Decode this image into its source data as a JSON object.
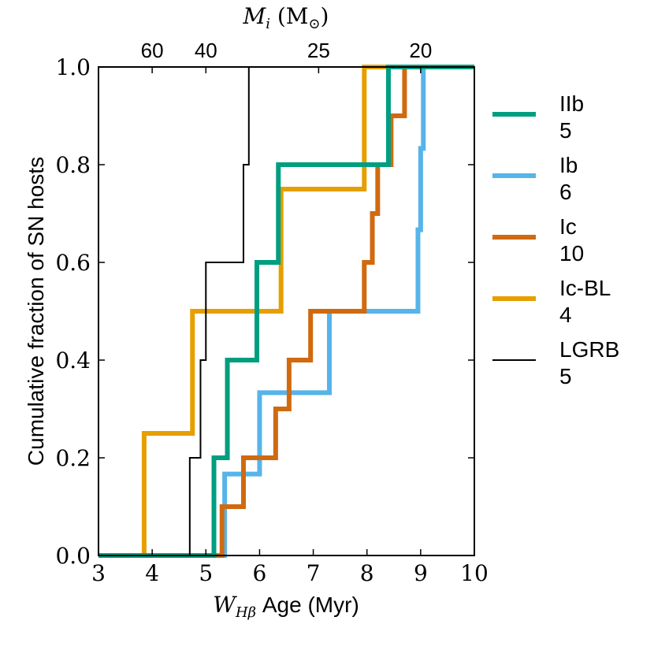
{
  "chart_data": {
    "type": "line",
    "step": true,
    "xlabel_var": "W",
    "xlabel_sub": "Hβ",
    "xlabel_rest": " Age (Myr)",
    "ylabel": "Cumulative fraction of SN hosts",
    "top_label_var": "M",
    "top_label_sub": "i",
    "top_label_unit_open": " (M",
    "top_label_unit_sub": "⊙",
    "top_label_unit_close": ")",
    "xlim": [
      3,
      10
    ],
    "ylim": [
      0,
      1
    ],
    "x_ticks": [
      "3",
      "4",
      "5",
      "6",
      "7",
      "8",
      "9",
      "10"
    ],
    "y_ticks": [
      "0.0",
      "0.2",
      "0.4",
      "0.6",
      "0.8",
      "1.0"
    ],
    "top_ticks": [
      {
        "x": 4.0,
        "label": "60"
      },
      {
        "x": 5.0,
        "label": "40"
      },
      {
        "x": 7.1,
        "label": "25"
      },
      {
        "x": 9.0,
        "label": "20"
      }
    ],
    "series": [
      {
        "name": "IIb",
        "count": "5",
        "color": "#009E80",
        "width": 6,
        "values": [
          5.15,
          5.4,
          5.95,
          6.35,
          8.4
        ]
      },
      {
        "name": "Ib",
        "count": "6",
        "color": "#56B4E9",
        "width": 6,
        "values": [
          5.35,
          6.0,
          7.3,
          8.95,
          9.0,
          9.05
        ]
      },
      {
        "name": "Ic",
        "count": "10",
        "color": "#D06A10",
        "width": 6,
        "values": [
          5.3,
          5.7,
          6.3,
          6.55,
          6.95,
          7.95,
          8.1,
          8.2,
          8.45,
          8.7
        ]
      },
      {
        "name": "Ic-BL",
        "count": "4",
        "color": "#E69F00",
        "width": 6,
        "values": [
          3.85,
          4.75,
          6.4,
          7.95
        ]
      },
      {
        "name": "LGRB",
        "count": "5",
        "color": "#000000",
        "width": 2,
        "values": [
          4.7,
          4.9,
          5.0,
          5.7,
          5.8
        ]
      }
    ]
  }
}
